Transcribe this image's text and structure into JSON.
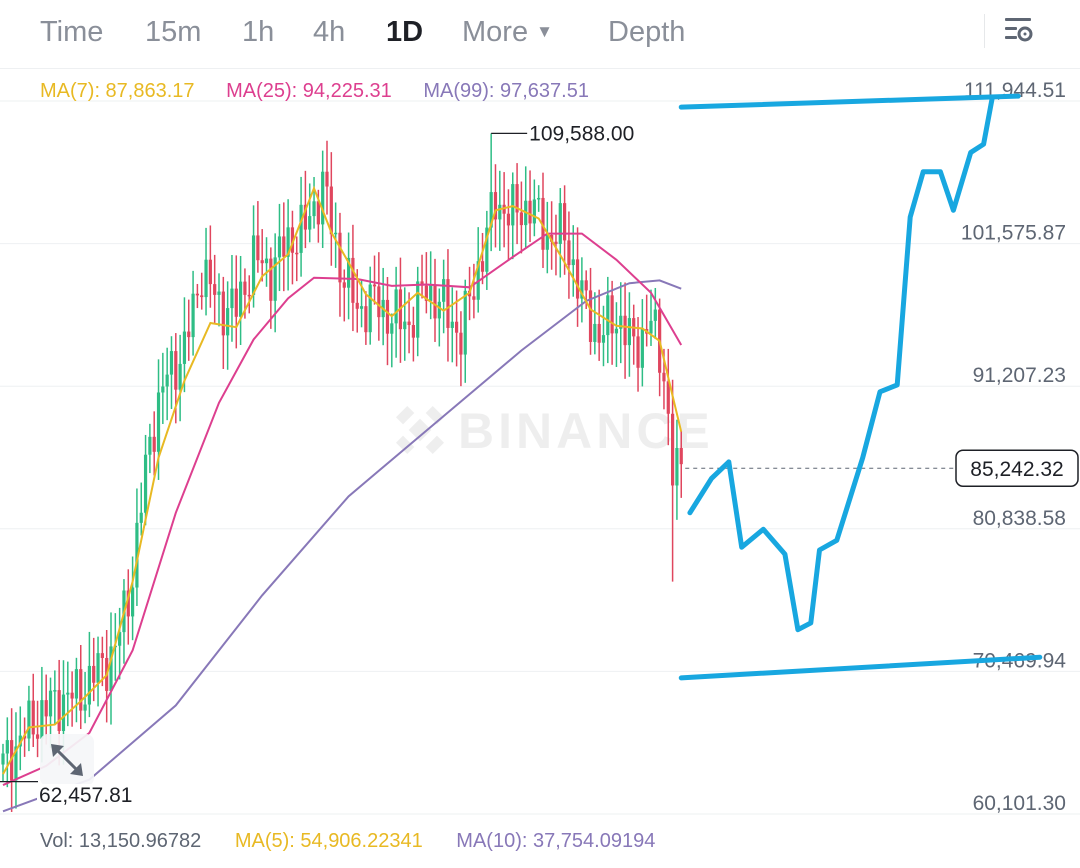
{
  "tabs": [
    {
      "label": "Time",
      "active": false
    },
    {
      "label": "15m",
      "active": false
    },
    {
      "label": "1h",
      "active": false
    },
    {
      "label": "4h",
      "active": false
    },
    {
      "label": "1D",
      "active": true
    },
    {
      "label": "More",
      "active": false
    },
    {
      "label": "Depth",
      "active": false
    }
  ],
  "indicators": {
    "ma7": "MA(7): 87,863.17",
    "ma25": "MA(25): 94,225.31",
    "ma99": "MA(99): 97,637.51"
  },
  "volume": {
    "vol": "Vol: 13,150.96782",
    "ma5": "MA(5): 54,906.22341",
    "ma10": "MA(10): 37,754.09194"
  },
  "watermark": "BINANCE",
  "colors": {
    "up": "#2ebd85",
    "down": "#e0465e",
    "ma7": "#e8b923",
    "ma25": "#dd3f8f",
    "ma99": "#8878b8",
    "drawing": "#18a7e0"
  },
  "chart_data": {
    "type": "candlestick",
    "timeframe": "1D",
    "y_ticks": [
      "111,944.51",
      "101,575.87",
      "91,207.23",
      "80,838.58",
      "70,469.94",
      "60,101.30"
    ],
    "ylim": [
      60101.3,
      111944.51
    ],
    "current_price": "85,242.32",
    "annotations": {
      "high": "109,588.00",
      "low": "62,457.81"
    },
    "anchors": [
      {
        "i": 0,
        "v": 63600
      },
      {
        "i": 5,
        "v": 66000
      },
      {
        "i": 10,
        "v": 67800
      },
      {
        "i": 14,
        "v": 68500
      },
      {
        "i": 18,
        "v": 68900
      },
      {
        "i": 22,
        "v": 70600
      },
      {
        "i": 26,
        "v": 72000
      },
      {
        "i": 30,
        "v": 77500
      },
      {
        "i": 34,
        "v": 87500
      },
      {
        "i": 38,
        "v": 92000
      },
      {
        "i": 42,
        "v": 93800
      },
      {
        "i": 46,
        "v": 99700
      },
      {
        "i": 50,
        "v": 97100
      },
      {
        "i": 54,
        "v": 96800
      },
      {
        "i": 58,
        "v": 100500
      },
      {
        "i": 62,
        "v": 99600
      },
      {
        "i": 66,
        "v": 101800
      },
      {
        "i": 70,
        "v": 102700
      },
      {
        "i": 74,
        "v": 105900
      },
      {
        "i": 78,
        "v": 100100
      },
      {
        "i": 82,
        "v": 96800
      },
      {
        "i": 86,
        "v": 97400
      },
      {
        "i": 90,
        "v": 96200
      },
      {
        "i": 94,
        "v": 95800
      },
      {
        "i": 98,
        "v": 98400
      },
      {
        "i": 102,
        "v": 96900
      },
      {
        "i": 106,
        "v": 94900
      },
      {
        "i": 110,
        "v": 99800
      },
      {
        "i": 114,
        "v": 104600
      },
      {
        "i": 118,
        "v": 103700
      },
      {
        "i": 122,
        "v": 104400
      },
      {
        "i": 126,
        "v": 102100
      },
      {
        "i": 130,
        "v": 102300
      },
      {
        "i": 134,
        "v": 97600
      },
      {
        "i": 138,
        "v": 94800
      },
      {
        "i": 142,
        "v": 96400
      },
      {
        "i": 146,
        "v": 94000
      },
      {
        "i": 150,
        "v": 95900
      },
      {
        "i": 153,
        "v": 92400
      },
      {
        "i": 155,
        "v": 84800
      },
      {
        "i": 157,
        "v": 85200
      }
    ],
    "ma7_points": [
      {
        "i": 0,
        "v": 63000
      },
      {
        "i": 6,
        "v": 66400
      },
      {
        "i": 12,
        "v": 66600
      },
      {
        "i": 18,
        "v": 68300
      },
      {
        "i": 24,
        "v": 70200
      },
      {
        "i": 30,
        "v": 77000
      },
      {
        "i": 36,
        "v": 86000
      },
      {
        "i": 42,
        "v": 91600
      },
      {
        "i": 48,
        "v": 95800
      },
      {
        "i": 54,
        "v": 95500
      },
      {
        "i": 60,
        "v": 99200
      },
      {
        "i": 66,
        "v": 100800
      },
      {
        "i": 72,
        "v": 105600
      },
      {
        "i": 76,
        "v": 102400
      },
      {
        "i": 80,
        "v": 100200
      },
      {
        "i": 84,
        "v": 97900
      },
      {
        "i": 90,
        "v": 96300
      },
      {
        "i": 96,
        "v": 98000
      },
      {
        "i": 102,
        "v": 96700
      },
      {
        "i": 108,
        "v": 98000
      },
      {
        "i": 114,
        "v": 104000
      },
      {
        "i": 118,
        "v": 104300
      },
      {
        "i": 124,
        "v": 103400
      },
      {
        "i": 130,
        "v": 100200
      },
      {
        "i": 136,
        "v": 96800
      },
      {
        "i": 142,
        "v": 95600
      },
      {
        "i": 148,
        "v": 95400
      },
      {
        "i": 152,
        "v": 94500
      },
      {
        "i": 155,
        "v": 90500
      },
      {
        "i": 157,
        "v": 87900
      }
    ],
    "ma25_points": [
      {
        "i": 0,
        "v": 62200
      },
      {
        "i": 10,
        "v": 63600
      },
      {
        "i": 20,
        "v": 66000
      },
      {
        "i": 30,
        "v": 72000
      },
      {
        "i": 40,
        "v": 82000
      },
      {
        "i": 50,
        "v": 90000
      },
      {
        "i": 58,
        "v": 94600
      },
      {
        "i": 66,
        "v": 97600
      },
      {
        "i": 72,
        "v": 99100
      },
      {
        "i": 82,
        "v": 99000
      },
      {
        "i": 90,
        "v": 98500
      },
      {
        "i": 98,
        "v": 98600
      },
      {
        "i": 108,
        "v": 98400
      },
      {
        "i": 118,
        "v": 100600
      },
      {
        "i": 126,
        "v": 102300
      },
      {
        "i": 134,
        "v": 102300
      },
      {
        "i": 142,
        "v": 100400
      },
      {
        "i": 150,
        "v": 98000
      },
      {
        "i": 157,
        "v": 94200
      }
    ],
    "ma99_points": [
      {
        "i": 0,
        "v": 60300
      },
      {
        "i": 20,
        "v": 62600
      },
      {
        "i": 40,
        "v": 68000
      },
      {
        "i": 60,
        "v": 76000
      },
      {
        "i": 80,
        "v": 83200
      },
      {
        "i": 100,
        "v": 88500
      },
      {
        "i": 120,
        "v": 93800
      },
      {
        "i": 135,
        "v": 97400
      },
      {
        "i": 145,
        "v": 98700
      },
      {
        "i": 152,
        "v": 98900
      },
      {
        "i": 157,
        "v": 98300
      }
    ],
    "drawings": [
      {
        "type": "trend-line",
        "start": {
          "i": 157,
          "v": 111500
        },
        "end": {
          "i": 235,
          "v": 112300
        }
      },
      {
        "type": "trend-line",
        "start": {
          "i": 157,
          "v": 70000
        },
        "end": {
          "i": 240,
          "v": 71500
        }
      },
      {
        "type": "projection",
        "points": [
          {
            "i": 159,
            "v": 82000
          },
          {
            "i": 164,
            "v": 84500
          },
          {
            "i": 168,
            "v": 85700
          },
          {
            "i": 171,
            "v": 79500
          },
          {
            "i": 176,
            "v": 80800
          },
          {
            "i": 181,
            "v": 79000
          },
          {
            "i": 184,
            "v": 73500
          },
          {
            "i": 187,
            "v": 74000
          },
          {
            "i": 189,
            "v": 79300
          },
          {
            "i": 193,
            "v": 80000
          },
          {
            "i": 199,
            "v": 86000
          },
          {
            "i": 203,
            "v": 90800
          },
          {
            "i": 207,
            "v": 91300
          },
          {
            "i": 210,
            "v": 103500
          },
          {
            "i": 213,
            "v": 106800
          },
          {
            "i": 217,
            "v": 106800
          },
          {
            "i": 220,
            "v": 104000
          },
          {
            "i": 224,
            "v": 108200
          },
          {
            "i": 227,
            "v": 108800
          },
          {
            "i": 229,
            "v": 112200
          }
        ]
      }
    ]
  }
}
